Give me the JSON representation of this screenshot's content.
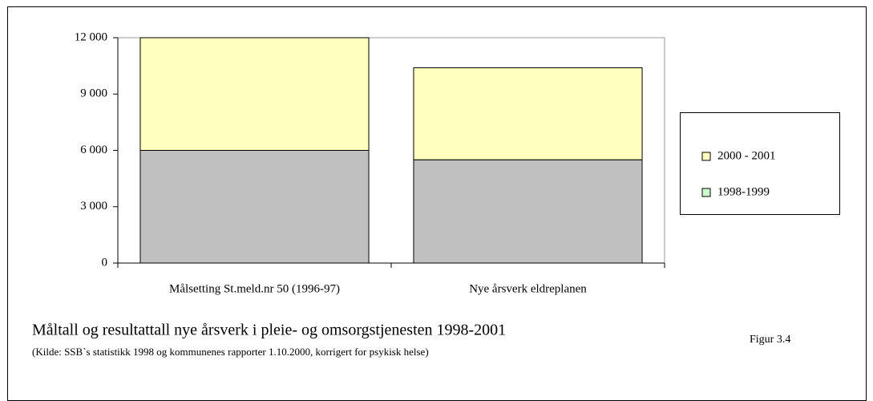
{
  "chart_data": {
    "type": "stacked_bar",
    "categories": [
      "Målsetting  St.meld.nr 50 (1996-97)",
      "Nye årsverk eldreplanen"
    ],
    "series": [
      {
        "name": "1998-1999",
        "color": "#c0c0c0",
        "legend_color": "#ccffcc",
        "values": [
          6000,
          5500
        ]
      },
      {
        "name": "2000 - 2001",
        "color": "#ffffc0",
        "legend_color": "#ffffc0",
        "values": [
          6000,
          4900
        ]
      }
    ],
    "ylim": [
      0,
      12000
    ],
    "yticks": [
      0,
      {
        "value": 3000,
        "label": "3 000"
      },
      {
        "value": 6000,
        "label": "6 000"
      },
      {
        "value": 9000,
        "label": "9 000"
      },
      {
        "value": 12000,
        "label": "12 000"
      }
    ],
    "grid": false,
    "legend": "right",
    "caption": "Måltall og resultattall nye årsverk i pleie- og omsorgstjenesten 1998-2001",
    "source": "(Kilde: SSB`s statistikk 1998 og kommunenes rapporter 1.10.2000, korrigert for psykisk helse)",
    "figure_label": "Figur 3.4"
  }
}
